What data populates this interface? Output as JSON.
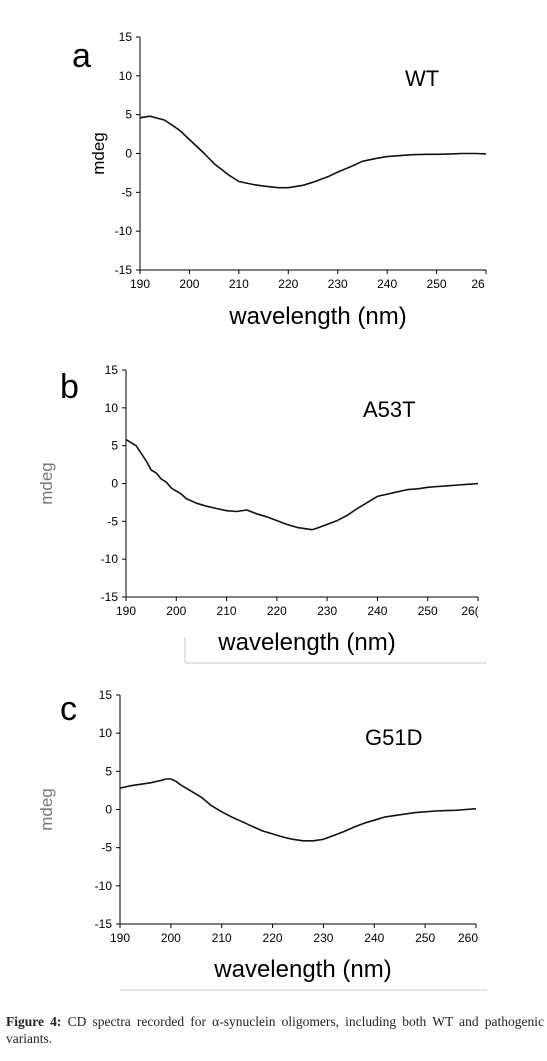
{
  "caption": {
    "label": "Figure 4:",
    "text": "CD spectra recorded for α-synuclein oligomers, including both WT and pathogenic variants."
  },
  "chart_data": [
    {
      "type": "line",
      "panel": "a",
      "variant_label": "WT",
      "xlabel": "wavelength (nm)",
      "ylabel": "mdeg",
      "xlim": [
        190,
        260
      ],
      "ylim": [
        -15,
        15
      ],
      "x_ticks": [
        "190",
        "200",
        "210",
        "220",
        "230",
        "240",
        "250",
        "26"
      ],
      "y_ticks": [
        "15",
        "10",
        "5",
        "0",
        "-5",
        "-10",
        "-15"
      ],
      "series": [
        {
          "x": [
            190,
            192,
            195,
            198,
            200,
            203,
            205,
            208,
            210,
            213,
            215,
            218,
            220,
            223,
            225,
            228,
            230,
            233,
            235,
            238,
            240,
            243,
            245,
            248,
            250,
            253,
            255,
            258,
            260
          ],
          "values": [
            4.6,
            4.8,
            4.3,
            3.0,
            1.8,
            0.0,
            -1.3,
            -2.8,
            -3.6,
            -4.0,
            -4.2,
            -4.4,
            -4.4,
            -4.1,
            -3.7,
            -3.0,
            -2.4,
            -1.6,
            -1.0,
            -0.6,
            -0.4,
            -0.25,
            -0.15,
            -0.1,
            -0.1,
            -0.05,
            0.0,
            0.0,
            -0.05
          ]
        }
      ]
    },
    {
      "type": "line",
      "panel": "b",
      "variant_label": "A53T",
      "xlabel": "wavelength (nm)",
      "ylabel": "mdeg",
      "xlim": [
        190,
        260
      ],
      "ylim": [
        -15,
        15
      ],
      "x_ticks": [
        "190",
        "200",
        "210",
        "220",
        "230",
        "240",
        "250",
        "26("
      ],
      "y_ticks": [
        "15",
        "10",
        "5",
        "0",
        "-5",
        "-10",
        "-15"
      ],
      "series": [
        {
          "x": [
            190,
            191,
            192,
            193,
            194,
            195,
            196,
            197,
            198,
            199,
            200,
            201,
            202,
            203,
            204,
            206,
            208,
            210,
            212,
            214,
            216,
            218,
            220,
            222,
            224,
            226,
            227,
            228,
            230,
            232,
            234,
            236,
            238,
            240,
            242,
            244,
            246,
            248,
            250,
            252,
            254,
            256,
            258,
            260
          ],
          "values": [
            5.8,
            5.4,
            5.0,
            4.0,
            3.0,
            1.8,
            1.4,
            0.6,
            0.2,
            -0.6,
            -1.0,
            -1.4,
            -2.0,
            -2.3,
            -2.6,
            -3.0,
            -3.3,
            -3.6,
            -3.7,
            -3.5,
            -4.0,
            -4.4,
            -4.9,
            -5.4,
            -5.8,
            -6.0,
            -6.1,
            -5.9,
            -5.4,
            -4.9,
            -4.2,
            -3.3,
            -2.5,
            -1.7,
            -1.4,
            -1.1,
            -0.8,
            -0.7,
            -0.5,
            -0.4,
            -0.3,
            -0.2,
            -0.1,
            0.0
          ]
        }
      ]
    },
    {
      "type": "line",
      "panel": "c",
      "variant_label": "G51D",
      "xlabel": "wavelength (nm)",
      "ylabel": "mdeg",
      "xlim": [
        190,
        260
      ],
      "ylim": [
        -15,
        15
      ],
      "x_ticks": [
        "190",
        "200",
        "210",
        "220",
        "230",
        "240",
        "250",
        "260"
      ],
      "y_ticks": [
        "15",
        "10",
        "5",
        "0",
        "-5",
        "-10",
        "-15"
      ],
      "series": [
        {
          "x": [
            190,
            192,
            194,
            196,
            198,
            199,
            200,
            201,
            202,
            204,
            206,
            208,
            210,
            212,
            214,
            216,
            218,
            220,
            222,
            224,
            226,
            228,
            230,
            232,
            234,
            236,
            238,
            240,
            242,
            244,
            246,
            248,
            250,
            252,
            254,
            256,
            258,
            260
          ],
          "values": [
            2.8,
            3.1,
            3.3,
            3.5,
            3.8,
            4.0,
            4.0,
            3.7,
            3.2,
            2.4,
            1.6,
            0.5,
            -0.3,
            -1.0,
            -1.6,
            -2.2,
            -2.8,
            -3.2,
            -3.6,
            -3.9,
            -4.1,
            -4.1,
            -3.9,
            -3.4,
            -2.9,
            -2.3,
            -1.8,
            -1.4,
            -1.0,
            -0.8,
            -0.6,
            -0.4,
            -0.3,
            -0.2,
            -0.15,
            -0.1,
            0.0,
            0.1
          ]
        }
      ]
    }
  ]
}
